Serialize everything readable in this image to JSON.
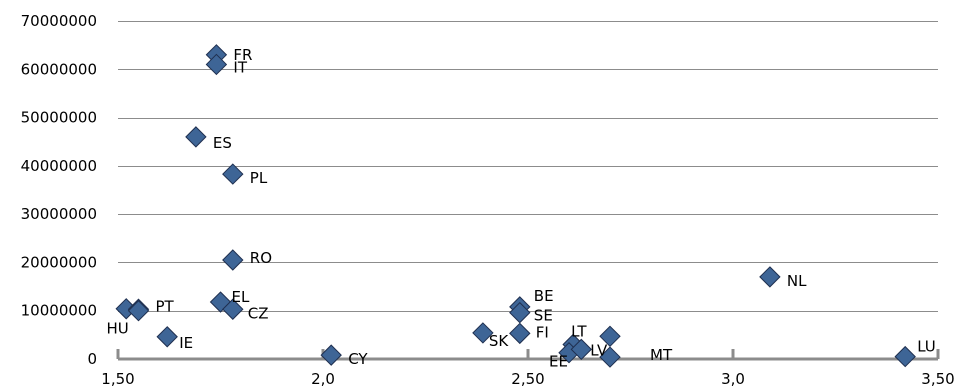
{
  "chart_data": {
    "type": "scatter",
    "title": "",
    "xlabel": "",
    "ylabel": "",
    "xlim": [
      1.5,
      3.5
    ],
    "ylim": [
      0,
      70000000
    ],
    "x_ticks": [
      1.5,
      2.0,
      2.5,
      3.0,
      3.5
    ],
    "x_tick_labels": [
      "1,50",
      "2,0",
      "2,50",
      "3,0",
      "3,50"
    ],
    "y_ticks": [
      0,
      10000000,
      20000000,
      30000000,
      40000000,
      50000000,
      60000000,
      70000000
    ],
    "y_tick_labels": [
      "0",
      "10000000",
      "20000000",
      "30000000",
      "40000000",
      "50000000",
      "60000000",
      "70000000"
    ],
    "grid": true,
    "marker_color": "#3e6596",
    "points": [
      {
        "label": "FR",
        "x": 1.74,
        "y": 63000000
      },
      {
        "label": "IT",
        "x": 1.74,
        "y": 61000000
      },
      {
        "label": "ES",
        "x": 1.69,
        "y": 46000000
      },
      {
        "label": "PL",
        "x": 1.78,
        "y": 38300000
      },
      {
        "label": "RO",
        "x": 1.78,
        "y": 20500000
      },
      {
        "label": "EL",
        "x": 1.75,
        "y": 11800000
      },
      {
        "label": "CZ",
        "x": 1.78,
        "y": 10300000
      },
      {
        "label": "",
        "x": 1.52,
        "y": 10400000
      },
      {
        "label": "PT",
        "x": 1.55,
        "y": 10300000
      },
      {
        "label": "HU",
        "x": 1.55,
        "y": 10000000
      },
      {
        "label": "IE",
        "x": 1.62,
        "y": 4600000
      },
      {
        "label": "CY",
        "x": 2.02,
        "y": 800000
      },
      {
        "label": "BE",
        "x": 2.48,
        "y": 10800000
      },
      {
        "label": "SE",
        "x": 2.48,
        "y": 9600000
      },
      {
        "label": "SK",
        "x": 2.39,
        "y": 5400000
      },
      {
        "label": "FI",
        "x": 2.48,
        "y": 5300000
      },
      {
        "label": "LT",
        "x": 2.61,
        "y": 3000000
      },
      {
        "label": "EE",
        "x": 2.6,
        "y": 1300000
      },
      {
        "label": "LV",
        "x": 2.63,
        "y": 2000000
      },
      {
        "label": "MT",
        "x": 2.7,
        "y": 400000
      },
      {
        "label": "",
        "x": 2.7,
        "y": 4700000
      },
      {
        "label": "NL",
        "x": 3.09,
        "y": 17000000
      },
      {
        "label": "LU",
        "x": 3.42,
        "y": 500000
      }
    ]
  }
}
